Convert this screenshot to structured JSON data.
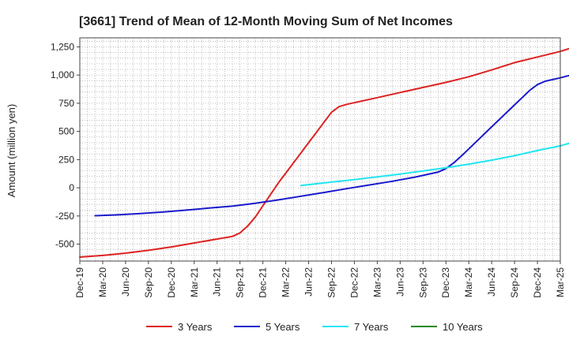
{
  "chart_data": {
    "type": "line",
    "title": "[3661]  Trend of Mean of 12-Month Moving Sum of Net Incomes",
    "ylabel": "Amount (million yen)",
    "xlabel": "",
    "ylim": [
      -650,
      1330
    ],
    "yticks": [
      -500,
      -250,
      0,
      250,
      500,
      750,
      1000,
      1250
    ],
    "ytick_labels": [
      "-500",
      "-250",
      "0",
      "250",
      "500",
      "750",
      "1,000",
      "1,250"
    ],
    "x_categories": [
      "Dec-19",
      "Mar-20",
      "Jun-20",
      "Sep-20",
      "Dec-20",
      "Mar-21",
      "Jun-21",
      "Sep-21",
      "Dec-21",
      "Mar-22",
      "Jun-22",
      "Sep-22",
      "Dec-22",
      "Mar-23",
      "Jun-23",
      "Sep-23",
      "Dec-23",
      "Mar-24",
      "Jun-24",
      "Sep-24",
      "Dec-24",
      "Mar-25"
    ],
    "x_unit": "month index from Dec-19",
    "grid": true,
    "legend_position": "bottom",
    "series": [
      {
        "name": "3 Years",
        "color": "#dd2222",
        "points": [
          [
            0,
            -615
          ],
          [
            3,
            -600
          ],
          [
            6,
            -580
          ],
          [
            9,
            -555
          ],
          [
            12,
            -525
          ],
          [
            15,
            -490
          ],
          [
            18,
            -455
          ],
          [
            20,
            -432
          ],
          [
            21,
            -400
          ],
          [
            22,
            -340
          ],
          [
            23,
            -260
          ],
          [
            24,
            -160
          ],
          [
            25,
            -60
          ],
          [
            26,
            40
          ],
          [
            27,
            130
          ],
          [
            28,
            220
          ],
          [
            29,
            310
          ],
          [
            30,
            400
          ],
          [
            31,
            490
          ],
          [
            32,
            580
          ],
          [
            33,
            670
          ],
          [
            34,
            720
          ],
          [
            35,
            740
          ],
          [
            36,
            755
          ],
          [
            39,
            800
          ],
          [
            42,
            845
          ],
          [
            45,
            890
          ],
          [
            48,
            935
          ],
          [
            51,
            985
          ],
          [
            54,
            1045
          ],
          [
            57,
            1110
          ],
          [
            60,
            1160
          ],
          [
            63,
            1210
          ],
          [
            66,
            1275
          ]
        ]
      },
      {
        "name": "5 Years",
        "color": "#1a1acc",
        "points": [
          [
            2,
            -248
          ],
          [
            5,
            -240
          ],
          [
            8,
            -228
          ],
          [
            11,
            -215
          ],
          [
            14,
            -198
          ],
          [
            17,
            -180
          ],
          [
            20,
            -163
          ],
          [
            23,
            -138
          ],
          [
            26,
            -108
          ],
          [
            29,
            -75
          ],
          [
            32,
            -42
          ],
          [
            35,
            -8
          ],
          [
            38,
            25
          ],
          [
            41,
            58
          ],
          [
            44,
            95
          ],
          [
            47,
            140
          ],
          [
            48,
            170
          ],
          [
            49,
            220
          ],
          [
            50,
            280
          ],
          [
            51,
            345
          ],
          [
            54,
            540
          ],
          [
            57,
            735
          ],
          [
            58,
            800
          ],
          [
            59,
            865
          ],
          [
            60,
            915
          ],
          [
            61,
            945
          ],
          [
            63,
            975
          ],
          [
            66,
            1030
          ]
        ]
      },
      {
        "name": "7 Years",
        "color": "#22e5f0",
        "points": [
          [
            29,
            20
          ],
          [
            33,
            50
          ],
          [
            36,
            72
          ],
          [
            39,
            97
          ],
          [
            42,
            122
          ],
          [
            45,
            150
          ],
          [
            48,
            178
          ],
          [
            51,
            210
          ],
          [
            54,
            245
          ],
          [
            57,
            285
          ],
          [
            60,
            330
          ],
          [
            63,
            372
          ],
          [
            66,
            430
          ]
        ]
      },
      {
        "name": "10 Years",
        "color": "#228b22",
        "points": []
      }
    ]
  }
}
